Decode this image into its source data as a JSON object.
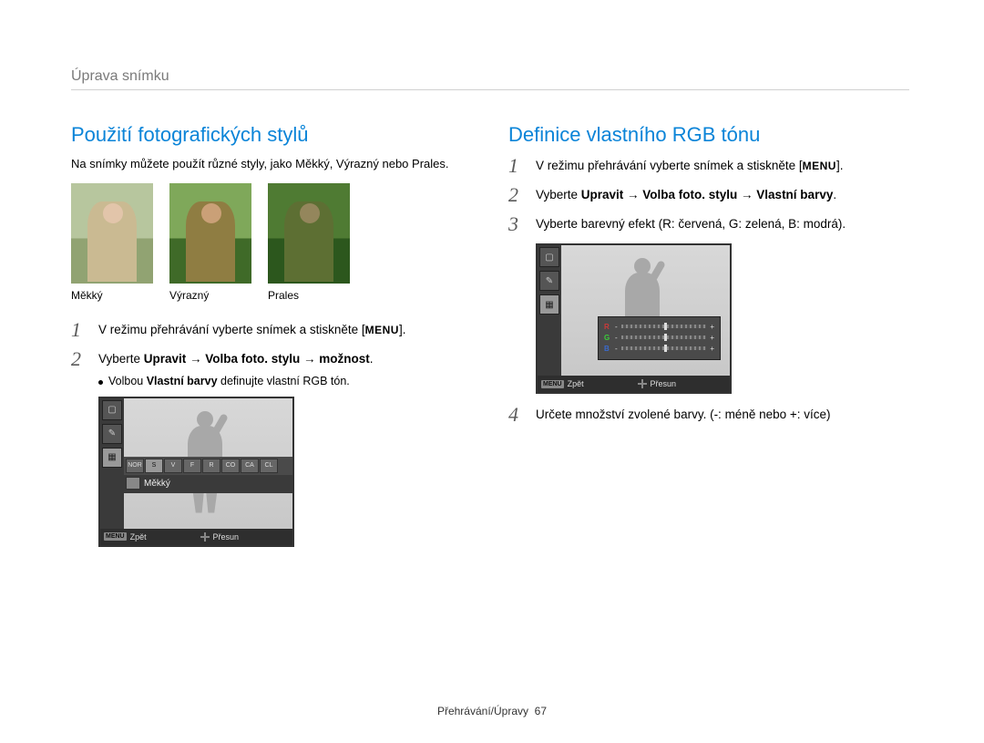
{
  "breadcrumb": "Úprava snímku",
  "footer_section": "Přehrávání/Úpravy",
  "footer_page": "67",
  "left": {
    "heading": "Použití fotografických stylů",
    "intro": "Na snímky můžete použít různé styly, jako Měkký, Výrazný nebo Prales.",
    "thumbs": [
      {
        "label": "Měkký",
        "bg": "linear-gradient(#9fb88a 0 55%, #6c8a4f 55% 100%)",
        "tint": "rgba(255,240,220,0.25)",
        "skin": "#d9b79a",
        "shirt": "#b8a97a"
      },
      {
        "label": "Výrazný",
        "bg": "linear-gradient(#7fa85a 0 55%, #3f6a28 55% 100%)",
        "tint": "rgba(0,0,0,0)",
        "skin": "#caa077",
        "shirt": "#8f7d42"
      },
      {
        "label": "Prales",
        "bg": "linear-gradient(#5c8a3a 0 55%, #2e5a1c 55% 100%)",
        "tint": "rgba(40,80,30,0.25)",
        "skin": "#b89870",
        "shirt": "#6f7a3a"
      }
    ],
    "steps": [
      {
        "n": "1",
        "text_pre": "V režimu přehrávání vyberte snímek a stiskněte ",
        "menu": "MENU",
        "text_post": "."
      },
      {
        "n": "2",
        "text_pre": "Vyberte ",
        "bold": "Upravit → Volba foto. stylu → možnost",
        "text_post": "."
      }
    ],
    "substep_pre": "Volbou ",
    "substep_bold": "Vlastní barvy",
    "substep_post": " definujte vlastní RGB tón.",
    "lcd": {
      "side_icons": [
        "▢",
        "✎",
        "▦"
      ],
      "side_selected": 2,
      "strip": [
        "NOR",
        "S",
        "V",
        "F",
        "R",
        "CO",
        "CA",
        "CL"
      ],
      "strip_selected": 1,
      "selected_label": "Měkký",
      "status_left_badge": "MENU",
      "status_left": "Zpět",
      "status_right": "Přesun"
    }
  },
  "right": {
    "heading": "Definice vlastního RGB tónu",
    "steps": [
      {
        "n": "1",
        "text_pre": "V režimu přehrávání vyberte snímek a stiskněte ",
        "menu": "MENU",
        "text_post": "."
      },
      {
        "n": "2",
        "text_pre": "Vyberte ",
        "bold": "Upravit → Volba foto. stylu → Vlastní barvy",
        "text_post": "."
      },
      {
        "n": "3",
        "text": "Vyberte barevný efekt (R: červená, G: zelená, B: modrá)."
      },
      {
        "n": "4",
        "text": "Určete množství zvolené barvy. (-: méně nebo +: více)"
      }
    ],
    "lcd": {
      "side_icons": [
        "▢",
        "✎",
        "▦"
      ],
      "side_selected": 2,
      "rgb_rows": [
        {
          "letter": "R",
          "pos": 50,
          "color": "#cc3a3a"
        },
        {
          "letter": "G",
          "pos": 50,
          "color": "#3acc3a"
        },
        {
          "letter": "B",
          "pos": 50,
          "color": "#3a6acc"
        }
      ],
      "minus": "-",
      "plus": "+",
      "status_left_badge": "MENU",
      "status_left": "Zpět",
      "status_right": "Přesun"
    }
  },
  "colors": {
    "heading": "#0a84d8",
    "breadcrumb": "#7a7a7a",
    "lcd_border": "#333333",
    "lcd_bg": "#dcdcdc"
  }
}
